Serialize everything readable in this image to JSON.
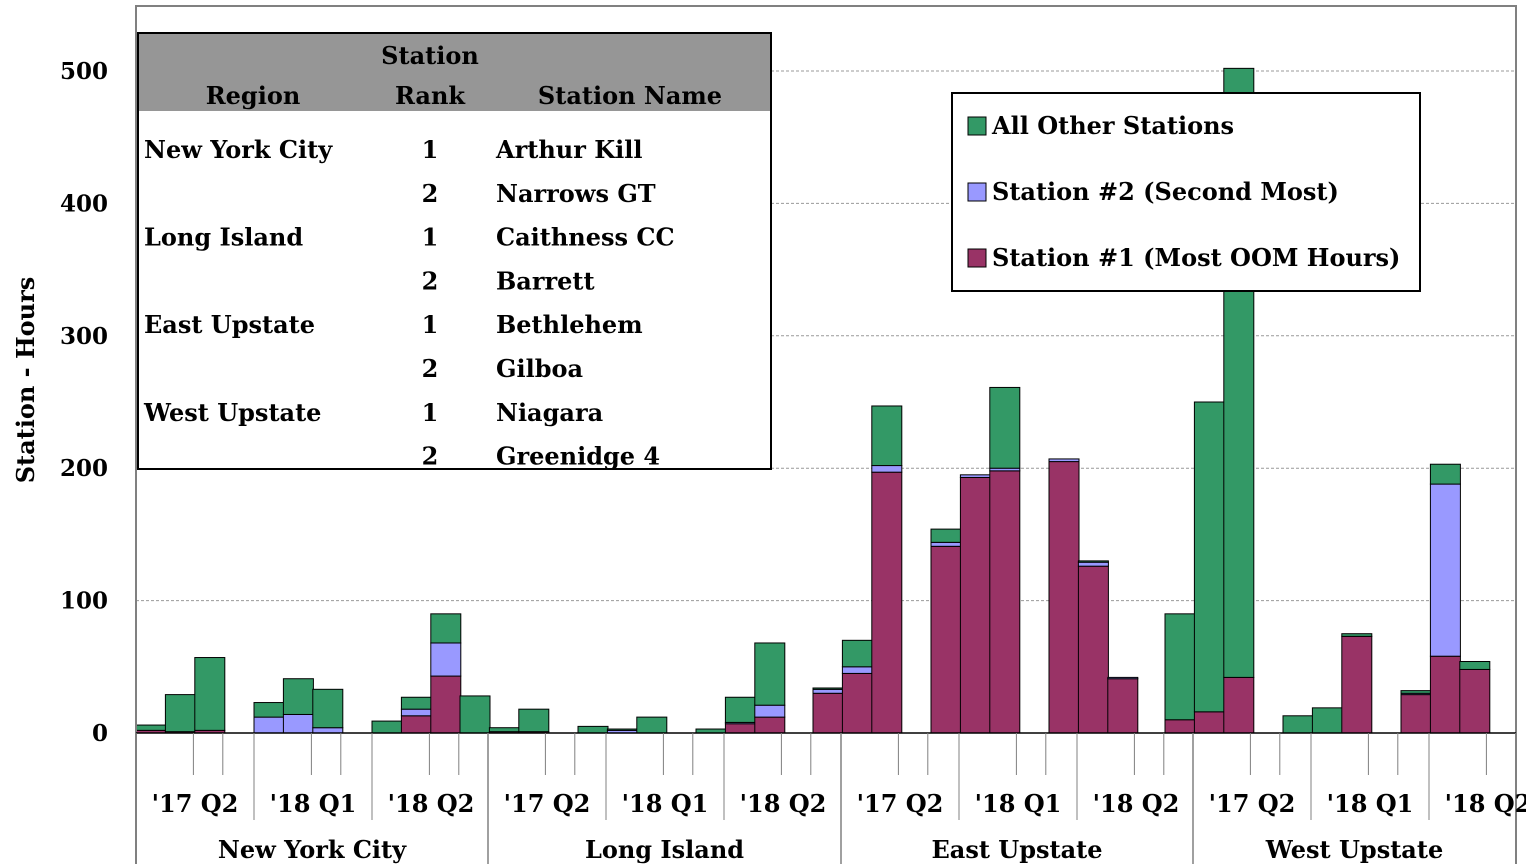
{
  "chart_data": {
    "type": "bar",
    "stacked": true,
    "ylabel": "Station - Hours",
    "ylim": [
      0,
      530
    ],
    "yticks": [
      0,
      100,
      200,
      300,
      400,
      500
    ],
    "grid": "horizontal-dashed",
    "legend_position": "top-right",
    "series": [
      {
        "name": "Station #1 (Most OOM Hours)",
        "color": "#993366",
        "values": [
          2,
          1,
          2,
          0,
          0,
          0,
          0,
          0,
          0,
          0,
          0,
          0,
          0,
          0,
          0,
          0,
          0,
          0,
          0,
          0,
          0,
          0,
          1,
          0,
          0,
          0,
          0,
          0,
          0,
          0,
          0,
          0,
          0,
          0,
          0,
          0,
          0,
          0,
          0,
          0,
          0,
          0,
          0,
          0,
          0,
          0,
          0,
          0,
          0,
          0,
          0,
          0,
          0,
          0,
          0,
          0,
          0,
          0,
          0,
          0,
          0,
          0,
          0,
          0,
          0,
          0,
          0,
          0,
          0,
          0,
          0,
          0
        ]
      },
      {
        "name": "Station #2 (Second Most)",
        "color": "#9999ff",
        "values": []
      },
      {
        "name": "All Other Stations",
        "color": "#339966",
        "values": []
      }
    ],
    "regions": [
      {
        "name": "New York City",
        "quarter_labels": [
          "'17 Q2",
          "'18 Q1",
          "'18 Q2"
        ],
        "bars": [
          [
            2,
            0,
            4
          ],
          [
            1,
            0,
            28
          ],
          [
            2,
            0,
            55
          ],
          [
            0,
            12,
            11
          ],
          [
            0,
            14,
            27
          ],
          [
            0,
            4,
            29
          ],
          [
            0,
            0,
            9
          ],
          [
            13,
            5,
            9
          ],
          [
            43,
            25,
            22
          ]
        ]
      },
      {
        "name": "Long Island",
        "quarter_labels": [
          "'17 Q2",
          "'18 Q1",
          "'18 Q2"
        ],
        "bars": [
          [
            0,
            0,
            28
          ],
          [
            1,
            0,
            3
          ],
          [
            1,
            0,
            17
          ],
          [
            0,
            0,
            5
          ],
          [
            0,
            2,
            1
          ],
          [
            0,
            0,
            12
          ],
          [
            0,
            0,
            3
          ],
          [
            7,
            1,
            19
          ],
          [
            12,
            9,
            47
          ]
        ]
      },
      {
        "name": "East Upstate",
        "quarter_labels": [
          "'17 Q2",
          "'18 Q1",
          "'18 Q2"
        ],
        "bars": [
          [
            30,
            3,
            1
          ],
          [
            45,
            5,
            20
          ],
          [
            197,
            5,
            45
          ],
          [
            141,
            3,
            10
          ],
          [
            193,
            2,
            0
          ],
          [
            198,
            2,
            61
          ],
          [
            205,
            2,
            0
          ],
          [
            126,
            3,
            1
          ],
          [
            41,
            1,
            0
          ]
        ]
      },
      {
        "name": "West Upstate",
        "quarter_labels": [
          "'17 Q2",
          "'18 Q1",
          "'18 Q2"
        ],
        "bars": [
          [
            10,
            0,
            80
          ],
          [
            16,
            0,
            234
          ],
          [
            42,
            0,
            460
          ],
          [
            0,
            0,
            13
          ],
          [
            0,
            0,
            19
          ],
          [
            73,
            0,
            2
          ],
          [
            29,
            1,
            2
          ],
          [
            58,
            130,
            15
          ],
          [
            48,
            0,
            6
          ]
        ]
      }
    ],
    "table": {
      "headers": [
        "Region",
        "Station Rank",
        "Station Name"
      ],
      "header_rank_top": "Station",
      "header_rank_bottom": "Rank",
      "rows": [
        {
          "region": "New York City",
          "rank": "1",
          "station": "Arthur Kill"
        },
        {
          "region": "",
          "rank": "2",
          "station": "Narrows GT"
        },
        {
          "region": "Long Island",
          "rank": "1",
          "station": "Caithness CC"
        },
        {
          "region": "",
          "rank": "2",
          "station": "Barrett"
        },
        {
          "region": "East Upstate",
          "rank": "1",
          "station": "Bethlehem"
        },
        {
          "region": "",
          "rank": "2",
          "station": "Gilboa"
        },
        {
          "region": "West Upstate",
          "rank": "1",
          "station": "Niagara"
        },
        {
          "region": "",
          "rank": "2",
          "station": "Greenidge 4"
        }
      ]
    },
    "legend": [
      {
        "label": "All Other Stations",
        "color": "#339966"
      },
      {
        "label": "Station #2 (Second Most)",
        "color": "#9999ff"
      },
      {
        "label": "Station #1 (Most OOM Hours)",
        "color": "#993366"
      }
    ]
  }
}
